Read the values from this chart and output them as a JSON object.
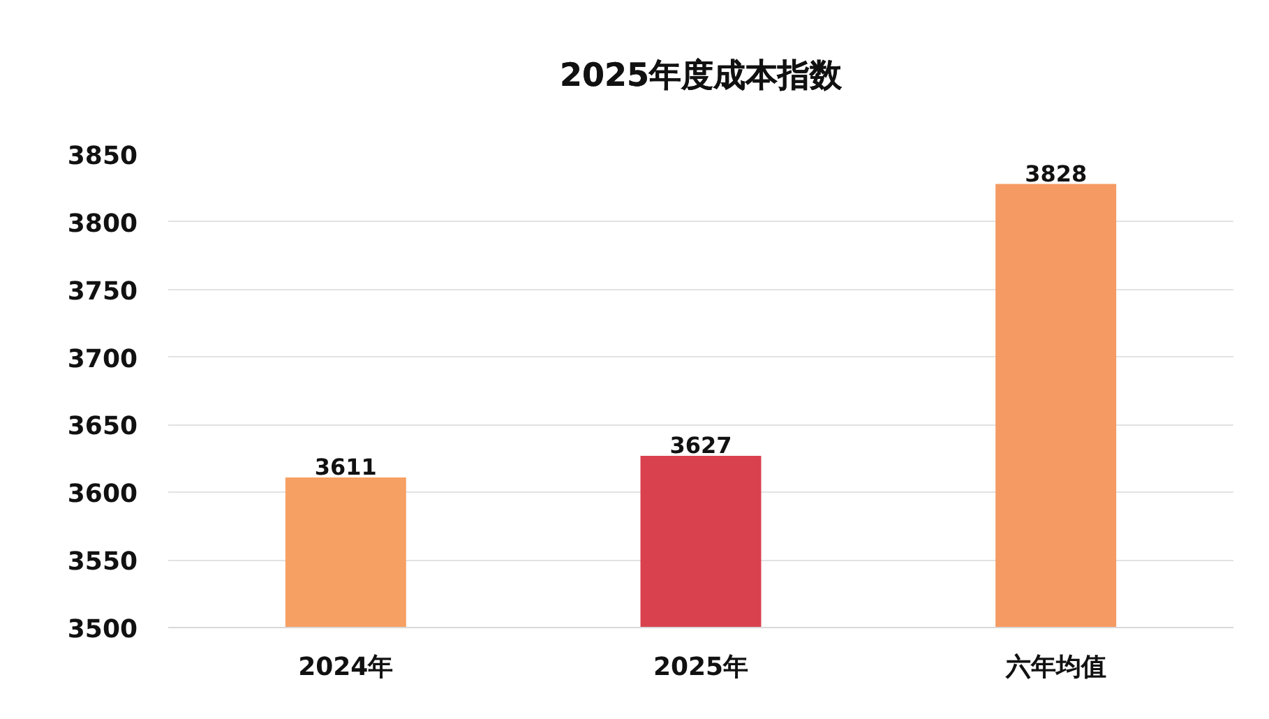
{
  "chart_data": {
    "type": "bar",
    "title": "2025年度成本指数",
    "categories": [
      "2024年",
      "2025年",
      "六年均值"
    ],
    "values": [
      3611,
      3627,
      3828
    ],
    "colors": [
      "#f7a063",
      "#d9414f",
      "#f59a62"
    ],
    "ylim": [
      3500,
      3850
    ],
    "yticks": [
      3500,
      3550,
      3600,
      3650,
      3700,
      3750,
      3800,
      3850
    ],
    "grid": "y",
    "data_labels": true
  }
}
